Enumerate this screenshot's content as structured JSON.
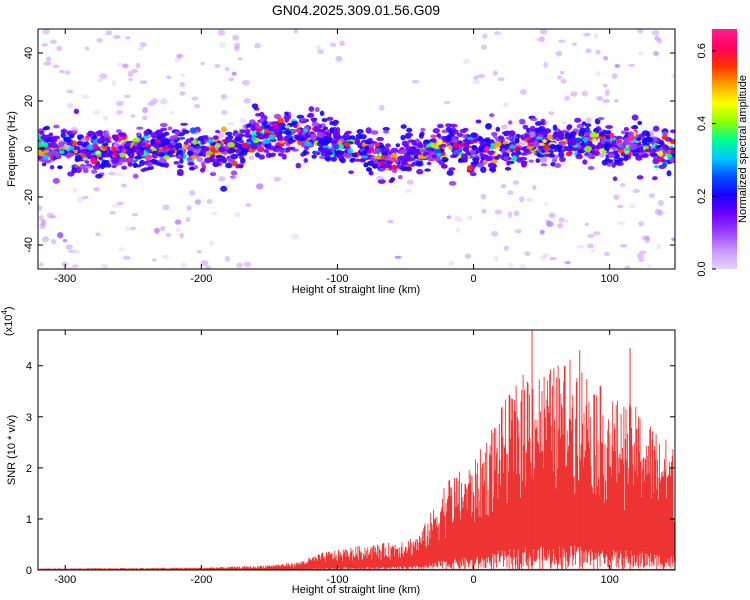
{
  "title": "GN04.2025.309.01.56.G09",
  "chart_data": [
    {
      "type": "heatmap",
      "xlabel": "Height of straight line (km)",
      "ylabel": "Frequency (Hz)",
      "xlim": [
        -320,
        148
      ],
      "ylim": [
        -50,
        50
      ],
      "xticks": [
        -300,
        -200,
        -100,
        0,
        100
      ],
      "yticks": [
        -40,
        -20,
        0,
        20,
        40
      ],
      "colorbar": {
        "label": "Normalized spectral amplitude",
        "range": [
          0,
          0.66
        ],
        "ticks": [
          0.0,
          0.2,
          0.4,
          0.6
        ],
        "colormap": [
          "#e6d2ff",
          "#c896ff",
          "#9b3cff",
          "#6a00ff",
          "#1a00ff",
          "#0050ff",
          "#00c8ff",
          "#00ff90",
          "#90ff00",
          "#ffff00",
          "#ffa000",
          "#ff3000",
          "#ff0060",
          "#ff2090"
        ]
      },
      "ridge_center": [
        {
          "x": -320,
          "f": 0
        },
        {
          "x": -170,
          "f": 0
        },
        {
          "x": -160,
          "f": 6
        },
        {
          "x": -120,
          "f": 5
        },
        {
          "x": -100,
          "f": 2
        },
        {
          "x": -80,
          "f": -1
        },
        {
          "x": -60,
          "f": -4
        },
        {
          "x": -40,
          "f": -1
        },
        {
          "x": -20,
          "f": 1
        },
        {
          "x": 0,
          "f": -1
        },
        {
          "x": 20,
          "f": 0
        },
        {
          "x": 40,
          "f": 2
        },
        {
          "x": 80,
          "f": 3
        },
        {
          "x": 110,
          "f": 1
        },
        {
          "x": 148,
          "f": 0
        }
      ],
      "band_halfwidth_hz": 8,
      "peak_amplitude": 0.66
    },
    {
      "type": "area",
      "xlabel": "Height of straight line (km)",
      "ylabel": "SNR (10 * v/v)",
      "y_multiplier": "(x10",
      "y_multiplier_exp": "4",
      "series_color": "#ee3333",
      "xlim": [
        -320,
        148
      ],
      "ylim": [
        0,
        4.7
      ],
      "xticks": [
        -300,
        -200,
        -100,
        0,
        100
      ],
      "yticks": [
        0,
        1,
        2,
        3,
        4
      ],
      "envelope": [
        {
          "x": -320,
          "y": 0.03
        },
        {
          "x": -200,
          "y": 0.05
        },
        {
          "x": -160,
          "y": 0.08
        },
        {
          "x": -130,
          "y": 0.15
        },
        {
          "x": -110,
          "y": 0.35
        },
        {
          "x": -90,
          "y": 0.45
        },
        {
          "x": -60,
          "y": 0.55
        },
        {
          "x": -40,
          "y": 0.7
        },
        {
          "x": -30,
          "y": 1.2
        },
        {
          "x": -20,
          "y": 1.8
        },
        {
          "x": 0,
          "y": 2.1
        },
        {
          "x": 20,
          "y": 3.2
        },
        {
          "x": 40,
          "y": 4.0
        },
        {
          "x": 50,
          "y": 3.9
        },
        {
          "x": 75,
          "y": 4.2
        },
        {
          "x": 100,
          "y": 3.4
        },
        {
          "x": 120,
          "y": 3.2
        },
        {
          "x": 148,
          "y": 2.4
        }
      ],
      "peaks": [
        {
          "x": 43,
          "y": 4.72
        },
        {
          "x": 78,
          "y": 4.3
        },
        {
          "x": 115,
          "y": 4.35
        }
      ]
    }
  ]
}
